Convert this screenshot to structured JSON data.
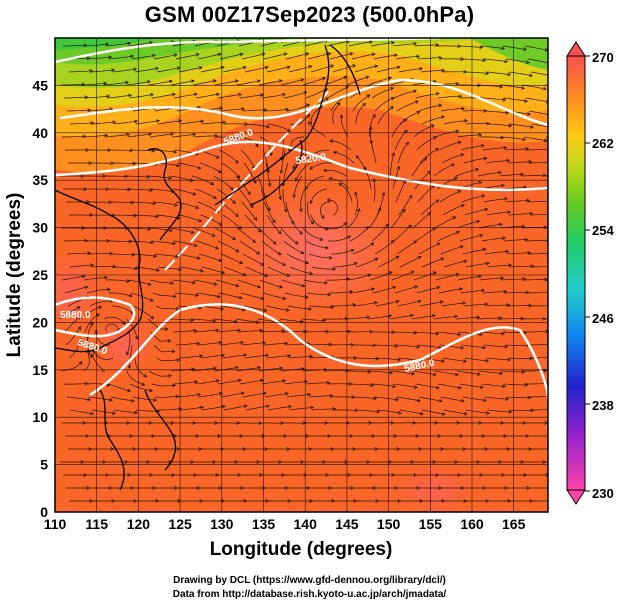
{
  "title": "GSM 00Z17Sep2023 (500.0hPa)",
  "axes": {
    "xlabel": "Longitude (degrees)",
    "ylabel": "Latitude (degrees)",
    "x_ticks": [
      "110",
      "115",
      "120",
      "125",
      "130",
      "135",
      "140",
      "145",
      "150",
      "155",
      "160",
      "165"
    ],
    "y_ticks": [
      "0",
      "5",
      "10",
      "15",
      "20",
      "25",
      "30",
      "35",
      "40",
      "45"
    ]
  },
  "colorbar": {
    "labels": [
      "270",
      "262",
      "254",
      "246",
      "238",
      "230"
    ],
    "colors": [
      "#ff44aa",
      "#9922cc",
      "#2222cc",
      "#1188ee",
      "#22cccc",
      "#22cc66",
      "#66cc22",
      "#bbd81a",
      "#ffc814",
      "#ff8f1e",
      "#fa6a28",
      "#fa5050"
    ]
  },
  "contour_labels": [
    "5880.0",
    "5820.0",
    "5880.0",
    "5880.0",
    "5880.0"
  ],
  "credits": {
    "line1": "Drawing by DCL (https://www.gfd-dennou.org/library/dcl/)",
    "line2": "Data from http://database.rish.kyoto-u.ac.jp/arch/jmadata/"
  }
}
